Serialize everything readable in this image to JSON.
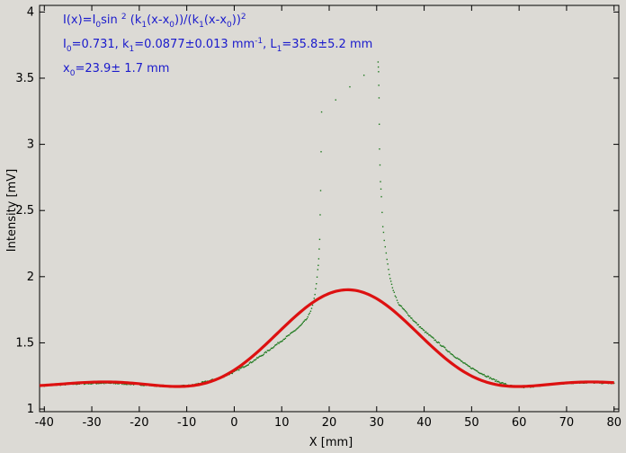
{
  "chart_data": {
    "type": "scatter",
    "title": "",
    "xlabel": "X [mm]",
    "ylabel": "Intensity [mV]",
    "xlim": [
      -41,
      81
    ],
    "ylim": [
      0.98,
      4.05
    ],
    "x_ticks": [
      -40,
      -30,
      -20,
      -10,
      0,
      10,
      20,
      30,
      40,
      50,
      60,
      70,
      80
    ],
    "y_ticks": [
      1,
      1.5,
      2,
      2.5,
      3,
      3.5,
      4
    ],
    "y_tick_labels": [
      "1",
      "1.5",
      "2",
      "2.5",
      "3",
      "3.5",
      "4"
    ],
    "grid": false,
    "annotations": {
      "line1": {
        "parts": [
          {
            "t": "I(x)=I"
          },
          {
            "t": "0",
            "s": "sub"
          },
          {
            "t": "sin "
          },
          {
            "t": "2",
            "s": "sup"
          },
          {
            "t": " (k"
          },
          {
            "t": "1",
            "s": "sub"
          },
          {
            "t": "(x-x"
          },
          {
            "t": "0",
            "s": "sub"
          },
          {
            "t": "))/(k"
          },
          {
            "t": "1",
            "s": "sub"
          },
          {
            "t": "(x-x"
          },
          {
            "t": "0",
            "s": "sub"
          },
          {
            "t": "))"
          },
          {
            "t": "2",
            "s": "sup"
          }
        ]
      },
      "line2": {
        "parts": [
          {
            "t": "I"
          },
          {
            "t": "0",
            "s": "sub"
          },
          {
            "t": "=0.731,  k"
          },
          {
            "t": "1",
            "s": "sub"
          },
          {
            "t": "=0.0877±0.013 mm"
          },
          {
            "t": "-1",
            "s": "sup"
          },
          {
            "t": ",   L"
          },
          {
            "t": "1",
            "s": "sub"
          },
          {
            "t": "=35.8±5.2 mm"
          }
        ]
      },
      "line3": {
        "parts": [
          {
            "t": "x"
          },
          {
            "t": "0",
            "s": "sub"
          },
          {
            "t": "=23.9±   1.7 mm"
          }
        ]
      }
    },
    "fit": {
      "name": "fit",
      "color": "#dd1111",
      "baseline": 1.17,
      "I0": 0.731,
      "k1": 0.0877,
      "x0": 23.9,
      "x_range": [
        -41,
        80
      ]
    },
    "series": [
      {
        "name": "data",
        "color": "#1f7a1f",
        "points": [
          [
            -40,
            1.178
          ],
          [
            -36,
            1.186
          ],
          [
            -32,
            1.192
          ],
          [
            -28,
            1.196
          ],
          [
            -24,
            1.193
          ],
          [
            -20,
            1.185
          ],
          [
            -16,
            1.176
          ],
          [
            -12,
            1.17
          ],
          [
            -9,
            1.178
          ],
          [
            -6,
            1.205
          ],
          [
            -3,
            1.235
          ],
          [
            0,
            1.28
          ],
          [
            3,
            1.34
          ],
          [
            6,
            1.41
          ],
          [
            9,
            1.49
          ],
          [
            12,
            1.57
          ],
          [
            14,
            1.63
          ],
          [
            15.5,
            1.69
          ],
          [
            16.5,
            1.78
          ],
          [
            17,
            1.86
          ],
          [
            17.3,
            1.95
          ],
          [
            17.6,
            2.05
          ],
          [
            17.8,
            2.13
          ],
          [
            18,
            2.28
          ],
          [
            18.2,
            2.65
          ],
          [
            18.4,
            3.24
          ],
          [
            30.3,
            3.62
          ],
          [
            30.4,
            3.55
          ],
          [
            30.5,
            3.35
          ],
          [
            30.6,
            2.96
          ],
          [
            30.8,
            2.72
          ],
          [
            31,
            2.6
          ],
          [
            31.3,
            2.38
          ],
          [
            31.6,
            2.28
          ],
          [
            32,
            2.18
          ],
          [
            32.5,
            2.05
          ],
          [
            33,
            1.96
          ],
          [
            33.5,
            1.9
          ],
          [
            34.5,
            1.8
          ],
          [
            36,
            1.74
          ],
          [
            38,
            1.66
          ],
          [
            40,
            1.59
          ],
          [
            43,
            1.5
          ],
          [
            46,
            1.41
          ],
          [
            49,
            1.33
          ],
          [
            52,
            1.27
          ],
          [
            55,
            1.215
          ],
          [
            58,
            1.175
          ],
          [
            61,
            1.165
          ],
          [
            64,
            1.175
          ],
          [
            68,
            1.19
          ],
          [
            72,
            1.2
          ],
          [
            76,
            1.2
          ],
          [
            80,
            1.195
          ]
        ]
      }
    ]
  }
}
